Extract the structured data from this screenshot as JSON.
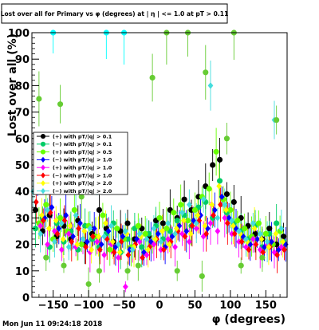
{
  "chart_data": {
    "type": "scatter",
    "title": "Lost over all for Primary vs φ (degrees) at | η | <= 1.0 at pT > 0.11",
    "xlabel": "φ (degrees)",
    "ylabel": "Lost over all (%)",
    "xlim": [
      -180,
      180
    ],
    "ylim": [
      0,
      100
    ],
    "x_ticks": [
      -150,
      -100,
      -50,
      0,
      50,
      100,
      150
    ],
    "y_ticks": [
      0,
      10,
      20,
      30,
      40,
      50,
      60,
      70,
      80,
      90,
      100
    ],
    "grid": false,
    "legend_position": "left",
    "footer": "Mon Jun 11 09:24:18 2018",
    "series": [
      {
        "name": "(+) with pT/|q| > 0.1",
        "color": "#000000",
        "marker": "circle",
        "points": [
          [
            -175,
            33
          ],
          [
            -165,
            25
          ],
          [
            -155,
            31
          ],
          [
            -145,
            23
          ],
          [
            -135,
            27
          ],
          [
            -125,
            22
          ],
          [
            -115,
            29
          ],
          [
            -105,
            20
          ],
          [
            -95,
            24
          ],
          [
            -85,
            33
          ],
          [
            -75,
            26
          ],
          [
            -65,
            21
          ],
          [
            -55,
            25
          ],
          [
            -45,
            28
          ],
          [
            -35,
            22
          ],
          [
            -25,
            26
          ],
          [
            -15,
            23
          ],
          [
            -5,
            29
          ],
          [
            5,
            28
          ],
          [
            15,
            33
          ],
          [
            25,
            30
          ],
          [
            35,
            37
          ],
          [
            45,
            33
          ],
          [
            55,
            38
          ],
          [
            65,
            42
          ],
          [
            75,
            50
          ],
          [
            85,
            52
          ],
          [
            95,
            39
          ],
          [
            105,
            36
          ],
          [
            115,
            30
          ],
          [
            125,
            27
          ],
          [
            135,
            24
          ],
          [
            145,
            22
          ],
          [
            155,
            26
          ],
          [
            165,
            20
          ],
          [
            175,
            23
          ]
        ]
      },
      {
        "name": "(−) with pT/|q| > 0.1",
        "color": "#00cc66",
        "marker": "circle",
        "points": [
          [
            -175,
            26
          ],
          [
            -165,
            30
          ],
          [
            -155,
            19
          ],
          [
            -145,
            28
          ],
          [
            -135,
            21
          ],
          [
            -125,
            25
          ],
          [
            -115,
            18
          ],
          [
            -105,
            27
          ],
          [
            -95,
            22
          ],
          [
            -85,
            19
          ],
          [
            -75,
            24
          ],
          [
            -65,
            28
          ],
          [
            -55,
            17
          ],
          [
            -45,
            22
          ],
          [
            -35,
            26
          ],
          [
            -25,
            19
          ],
          [
            -15,
            24
          ],
          [
            -5,
            27
          ],
          [
            5,
            22
          ],
          [
            15,
            25
          ],
          [
            25,
            29
          ],
          [
            35,
            31
          ],
          [
            45,
            27
          ],
          [
            55,
            34
          ],
          [
            65,
            36
          ],
          [
            75,
            30
          ],
          [
            85,
            44
          ],
          [
            95,
            32
          ],
          [
            105,
            28
          ],
          [
            115,
            25
          ],
          [
            125,
            22
          ],
          [
            135,
            27
          ],
          [
            145,
            19
          ],
          [
            155,
            24
          ],
          [
            165,
            28
          ],
          [
            175,
            21
          ]
        ]
      },
      {
        "name": "(+) with pT/|q| > 0.5",
        "color": "#66ff00",
        "marker": "circle",
        "points": [
          [
            -170,
            28
          ],
          [
            -160,
            35
          ],
          [
            -150,
            22
          ],
          [
            -140,
            30
          ],
          [
            -130,
            25
          ],
          [
            -120,
            33
          ],
          [
            -110,
            20
          ],
          [
            -100,
            27
          ],
          [
            -90,
            23
          ],
          [
            -80,
            31
          ],
          [
            -70,
            18
          ],
          [
            -60,
            26
          ],
          [
            -50,
            22
          ],
          [
            -40,
            19
          ],
          [
            -30,
            27
          ],
          [
            -20,
            24
          ],
          [
            -10,
            20
          ],
          [
            0,
            30
          ],
          [
            10,
            26
          ],
          [
            20,
            32
          ],
          [
            30,
            35
          ],
          [
            40,
            29
          ],
          [
            50,
            33
          ],
          [
            60,
            38
          ],
          [
            70,
            41
          ],
          [
            80,
            55
          ],
          [
            90,
            37
          ],
          [
            100,
            33
          ],
          [
            110,
            29
          ],
          [
            120,
            26
          ],
          [
            130,
            23
          ],
          [
            140,
            28
          ],
          [
            150,
            24
          ],
          [
            160,
            20
          ],
          [
            170,
            25
          ]
        ]
      },
      {
        "name": "(−) with pT/|q| > 1.0",
        "color": "#0000ff",
        "marker": "diamond",
        "points": [
          [
            -172,
            44
          ],
          [
            -162,
            30
          ],
          [
            -152,
            34
          ],
          [
            -142,
            26
          ],
          [
            -132,
            31
          ],
          [
            -122,
            23
          ],
          [
            -112,
            28
          ],
          [
            -102,
            21
          ],
          [
            -92,
            26
          ],
          [
            -82,
            20
          ],
          [
            -72,
            25
          ],
          [
            -62,
            19
          ],
          [
            -52,
            23
          ],
          [
            -42,
            18
          ],
          [
            -32,
            22
          ],
          [
            -22,
            17
          ],
          [
            -12,
            21
          ],
          [
            -2,
            24
          ],
          [
            8,
            19
          ],
          [
            18,
            23
          ],
          [
            28,
            27
          ],
          [
            38,
            25
          ],
          [
            48,
            29
          ],
          [
            58,
            31
          ],
          [
            68,
            26
          ],
          [
            78,
            33
          ],
          [
            88,
            38
          ],
          [
            98,
            30
          ],
          [
            108,
            26
          ],
          [
            118,
            23
          ],
          [
            128,
            20
          ],
          [
            138,
            22
          ],
          [
            148,
            19
          ],
          [
            158,
            21
          ],
          [
            168,
            18
          ],
          [
            178,
            20
          ]
        ]
      },
      {
        "name": "(+) with pT/|q| > 1.0",
        "color": "#ff00ff",
        "marker": "diamond",
        "points": [
          [
            -168,
            27
          ],
          [
            -158,
            20
          ],
          [
            -148,
            25
          ],
          [
            -138,
            18
          ],
          [
            -128,
            24
          ],
          [
            -118,
            19
          ],
          [
            -108,
            22
          ],
          [
            -98,
            17
          ],
          [
            -88,
            21
          ],
          [
            -78,
            16
          ],
          [
            -68,
            20
          ],
          [
            -58,
            15
          ],
          [
            -48,
            4
          ],
          [
            -38,
            18
          ],
          [
            -28,
            21
          ],
          [
            -18,
            16
          ],
          [
            -8,
            20
          ],
          [
            2,
            18
          ],
          [
            12,
            22
          ],
          [
            22,
            19
          ],
          [
            32,
            24
          ],
          [
            42,
            21
          ],
          [
            52,
            26
          ],
          [
            62,
            23
          ],
          [
            72,
            28
          ],
          [
            82,
            25
          ],
          [
            92,
            30
          ],
          [
            102,
            24
          ],
          [
            112,
            21
          ],
          [
            122,
            19
          ],
          [
            132,
            22
          ],
          [
            142,
            18
          ],
          [
            152,
            20
          ],
          [
            162,
            17
          ],
          [
            172,
            19
          ]
        ]
      },
      {
        "name": "(−) with pT/|q| > 1.0",
        "color": "#ff0000",
        "marker": "diamond",
        "points": [
          [
            -174,
            36
          ],
          [
            -164,
            29
          ],
          [
            -154,
            32
          ],
          [
            -144,
            24
          ],
          [
            -134,
            29
          ],
          [
            -124,
            21
          ],
          [
            -114,
            26
          ],
          [
            -104,
            19
          ],
          [
            -94,
            23
          ],
          [
            -84,
            18
          ],
          [
            -74,
            22
          ],
          [
            -64,
            17
          ],
          [
            -54,
            21
          ],
          [
            -44,
            16
          ],
          [
            -34,
            20
          ],
          [
            -24,
            15
          ],
          [
            -14,
            19
          ],
          [
            -4,
            22
          ],
          [
            6,
            18
          ],
          [
            16,
            21
          ],
          [
            26,
            25
          ],
          [
            36,
            23
          ],
          [
            46,
            27
          ],
          [
            56,
            29
          ],
          [
            66,
            24
          ],
          [
            76,
            31
          ],
          [
            86,
            35
          ],
          [
            96,
            28
          ],
          [
            106,
            24
          ],
          [
            116,
            21
          ],
          [
            126,
            18
          ],
          [
            136,
            20
          ],
          [
            146,
            17
          ],
          [
            156,
            19
          ],
          [
            166,
            16
          ],
          [
            176,
            18
          ]
        ]
      },
      {
        "name": "(+) with pT/|q| > 2.0",
        "color": "#ffff00",
        "marker": "diamond",
        "points": [
          [
            -166,
            31
          ],
          [
            -156,
            26
          ],
          [
            -146,
            29
          ],
          [
            -136,
            22
          ],
          [
            -126,
            27
          ],
          [
            -116,
            20
          ],
          [
            -106,
            25
          ],
          [
            -96,
            18
          ],
          [
            -86,
            23
          ],
          [
            -76,
            28
          ],
          [
            -66,
            21
          ],
          [
            -56,
            17
          ],
          [
            -46,
            24
          ],
          [
            -36,
            19
          ],
          [
            -26,
            23
          ],
          [
            -16,
            18
          ],
          [
            -6,
            22
          ],
          [
            4,
            25
          ],
          [
            14,
            20
          ],
          [
            24,
            26
          ],
          [
            34,
            29
          ],
          [
            44,
            24
          ],
          [
            54,
            31
          ],
          [
            64,
            27
          ],
          [
            74,
            35
          ],
          [
            84,
            42
          ],
          [
            94,
            33
          ],
          [
            104,
            27
          ],
          [
            114,
            24
          ],
          [
            124,
            21
          ],
          [
            134,
            26
          ],
          [
            144,
            22
          ],
          [
            154,
            19
          ],
          [
            164,
            24
          ],
          [
            174,
            21
          ]
        ]
      },
      {
        "name": "(−) with pT/|q| > 2.0",
        "color": "#44dddd",
        "marker": "diamond",
        "points": [
          [
            -178,
            40
          ],
          [
            -168,
            24
          ],
          [
            -158,
            33
          ],
          [
            -148,
            21
          ],
          [
            -138,
            28
          ],
          [
            -128,
            19
          ],
          [
            -118,
            31
          ],
          [
            -108,
            22
          ],
          [
            -98,
            26
          ],
          [
            -88,
            43
          ],
          [
            -78,
            23
          ],
          [
            -68,
            27
          ],
          [
            -58,
            20
          ],
          [
            -48,
            25
          ],
          [
            -38,
            18
          ],
          [
            -28,
            24
          ],
          [
            -18,
            22
          ],
          [
            -8,
            26
          ],
          [
            2,
            21
          ],
          [
            12,
            28
          ],
          [
            22,
            24
          ],
          [
            32,
            32
          ],
          [
            42,
            35
          ],
          [
            52,
            28
          ],
          [
            62,
            37
          ],
          [
            72,
            80
          ],
          [
            82,
            30
          ],
          [
            92,
            35
          ],
          [
            102,
            29
          ],
          [
            112,
            25
          ],
          [
            122,
            22
          ],
          [
            132,
            28
          ],
          [
            142,
            24
          ],
          [
            152,
            21
          ],
          [
            162,
            67
          ],
          [
            172,
            26
          ]
        ]
      },
      {
        "name": "",
        "color": "#00ffff",
        "marker": "circle",
        "points": [
          [
            -150,
            100
          ],
          [
            -75,
            100
          ],
          [
            -50,
            100
          ]
        ]
      },
      {
        "name": "",
        "color": "#66cc33",
        "marker": "circle",
        "points": [
          [
            -170,
            75
          ],
          [
            -140,
            73
          ],
          [
            -125,
            50
          ],
          [
            -65,
            53
          ],
          [
            -10,
            83
          ],
          [
            10,
            100
          ],
          [
            40,
            100
          ],
          [
            65,
            85
          ],
          [
            95,
            60
          ],
          [
            105,
            100
          ],
          [
            165,
            67
          ],
          [
            -85,
            10
          ],
          [
            -100,
            5
          ],
          [
            -45,
            10
          ],
          [
            -30,
            12
          ],
          [
            -135,
            12
          ],
          [
            -160,
            15
          ],
          [
            -110,
            38
          ],
          [
            25,
            10
          ],
          [
            60,
            8
          ],
          [
            115,
            12
          ],
          [
            145,
            15
          ]
        ]
      }
    ]
  }
}
